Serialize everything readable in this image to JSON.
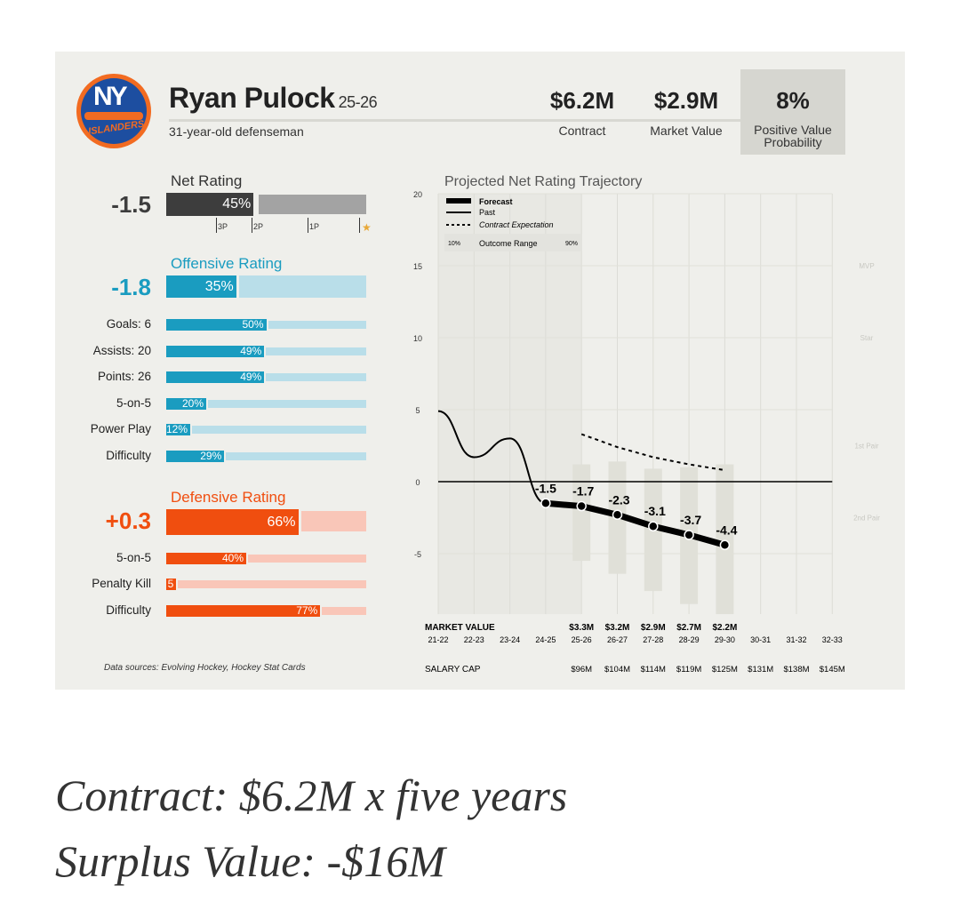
{
  "header": {
    "name": "Ryan Pulock",
    "season": "25-26",
    "subtitle": "31-year-old defenseman",
    "contract_value": "$6.2M",
    "contract_label": "Contract",
    "market_value": "$2.9M",
    "market_label": "Market Value",
    "probability_value": "8%",
    "probability_label": "Positive Value Probability",
    "logo_text": "NY ISLANDERS"
  },
  "net": {
    "title": "Net Rating",
    "value": "-1.5",
    "pct": "45%",
    "pct_num": 45,
    "ticks": [
      "3P",
      "2P",
      "1P"
    ],
    "star": "★"
  },
  "offense": {
    "title": "Offensive Rating",
    "value": "-1.8",
    "pct": "35%",
    "pct_num": 35,
    "rows": [
      {
        "label": "Goals: 6",
        "pct": "50%",
        "v": 50
      },
      {
        "label": "Assists: 20",
        "pct": "49%",
        "v": 49
      },
      {
        "label": "Points: 26",
        "pct": "49%",
        "v": 49
      },
      {
        "label": "5-on-5",
        "pct": "20%",
        "v": 20
      },
      {
        "label": "Power Play",
        "pct": "12%",
        "v": 12
      },
      {
        "label": "Difficulty",
        "pct": "29%",
        "v": 29
      }
    ]
  },
  "defense": {
    "title": "Defensive Rating",
    "value": "+0.3",
    "pct": "66%",
    "pct_num": 66,
    "rows": [
      {
        "label": "5-on-5",
        "pct": "40%",
        "v": 40
      },
      {
        "label": "Penalty Kill",
        "pct": "5",
        "v": 5
      },
      {
        "label": "Difficulty",
        "pct": "77%",
        "v": 77
      }
    ]
  },
  "colors": {
    "net_dark": "#3d3d3d",
    "net_light": "#a3a3a3",
    "off_dark": "#1a9cc0",
    "off_light": "#b9dee9",
    "def_dark": "#f04e0f",
    "def_light": "#f9c6b8",
    "star": "#e8a838"
  },
  "source": "Data sources: Evolving Hockey, Hockey Stat Cards",
  "chart_data": {
    "type": "line",
    "title": "Projected Net Rating Trajectory",
    "x": [
      "21-22",
      "22-23",
      "23-24",
      "24-25",
      "25-26",
      "26-27",
      "27-28",
      "28-29",
      "29-30",
      "30-31",
      "31-32",
      "32-33"
    ],
    "ylim": [
      -9.2,
      20
    ],
    "yticks": [
      20,
      15,
      10,
      5,
      0,
      -5
    ],
    "tier_labels": [
      {
        "label": "MVP",
        "y": 15
      },
      {
        "label": "Star",
        "y": 10
      },
      {
        "label": "1st Pair",
        "y": 2.5
      },
      {
        "label": "2nd Pair",
        "y": -2.5
      }
    ],
    "legend": {
      "forecast": "Forecast",
      "past": "Past",
      "contract": "Contract Expectation",
      "range_low": "10%",
      "range": "Outcome Range",
      "range_high": "90%"
    },
    "past": {
      "x": [
        "21-22",
        "22-23",
        "23-24",
        "24-25"
      ],
      "y": [
        4.9,
        1.7,
        3.0,
        -1.5
      ]
    },
    "forecast": {
      "x": [
        "24-25",
        "25-26",
        "26-27",
        "27-28",
        "28-29",
        "29-30"
      ],
      "y": [
        -1.5,
        -1.7,
        -2.3,
        -3.1,
        -3.7,
        -4.4
      ],
      "labels": [
        "-1.5",
        "-1.7",
        "-2.3",
        "-3.1",
        "-3.7",
        "-4.4"
      ]
    },
    "contract_expectation": {
      "x": [
        "25-26",
        "26-27",
        "27-28",
        "28-29",
        "29-30"
      ],
      "y": [
        3.3,
        2.4,
        1.7,
        1.2,
        0.8
      ]
    },
    "outcome_range": {
      "x": [
        "25-26",
        "26-27",
        "27-28",
        "28-29",
        "29-30"
      ],
      "low": [
        -5.5,
        -6.4,
        -7.6,
        -8.5,
        -9.2
      ],
      "high": [
        1.2,
        1.4,
        0.9,
        1.0,
        1.2
      ]
    },
    "market_value_label": "MARKET VALUE",
    "market_values": [
      "",
      "",
      "",
      "",
      "$3.3M",
      "$3.2M",
      "$2.9M",
      "$2.7M",
      "$2.2M",
      "",
      "",
      ""
    ],
    "salary_cap_label": "SALARY CAP",
    "salary_cap": [
      "",
      "",
      "",
      "",
      "$96M",
      "$104M",
      "$114M",
      "$119M",
      "$125M",
      "$131M",
      "$138M",
      "$145M"
    ]
  },
  "footer": {
    "line1": "Contract: $6.2M x five years",
    "line2": "Surplus Value: -$16M"
  }
}
